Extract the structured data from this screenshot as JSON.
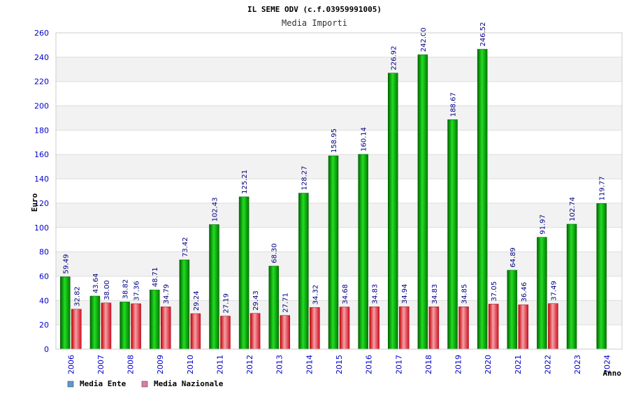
{
  "chart_data": {
    "type": "bar",
    "title": "IL SEME ODV (c.f.03959991005)",
    "subtitle": "Media Importi",
    "xlabel": "Anno",
    "ylabel": "Euro",
    "ylim": [
      0,
      260
    ],
    "ytick_step": 20,
    "grid": true,
    "legend_position": "bottom-left",
    "categories": [
      "2006",
      "2007",
      "2008",
      "2009",
      "2010",
      "2011",
      "2012",
      "2013",
      "2014",
      "2015",
      "2016",
      "2017",
      "2018",
      "2019",
      "2020",
      "2021",
      "2022",
      "2023",
      "2024"
    ],
    "series": [
      {
        "name": "Media Ente",
        "legend_color": "#5b9bd5",
        "bar_color": "#00a000",
        "values": [
          59.49,
          43.64,
          38.82,
          48.71,
          73.42,
          102.43,
          125.21,
          68.3,
          128.27,
          158.95,
          160.14,
          226.92,
          242.0,
          188.67,
          246.52,
          64.89,
          91.97,
          102.74,
          119.77
        ],
        "labels": [
          "59.49",
          "43.64",
          "38.82",
          "48.71",
          "73.42",
          "102.43",
          "125.21",
          "68.30",
          "128.27",
          "158.95",
          "160.14",
          "226.92",
          "242.00",
          "188.67",
          "246.52",
          "64.89",
          "91.97",
          "102.74",
          "119.77"
        ]
      },
      {
        "name": "Media Nazionale",
        "legend_color": "#e07aa8",
        "bar_color": "#e0202a",
        "values": [
          32.82,
          38.0,
          37.36,
          34.79,
          29.24,
          27.19,
          29.43,
          27.71,
          34.32,
          34.68,
          34.83,
          34.94,
          34.83,
          34.85,
          37.05,
          36.46,
          37.49,
          null,
          null
        ],
        "labels": [
          "32.82",
          "38.00",
          "37.36",
          "34.79",
          "29.24",
          "27.19",
          "29.43",
          "27.71",
          "34.32",
          "34.68",
          "34.83",
          "34.94",
          "34.83",
          "34.85",
          "37.05",
          "36.46",
          "37.49",
          "",
          ""
        ]
      }
    ]
  },
  "colors": {
    "axis_text": "#0000cc",
    "title_text": "#000000",
    "grid_band": "#f2f2f2",
    "grid_line": "#dddddd",
    "axis_line": "#cccccc",
    "value_label": "#000080"
  }
}
